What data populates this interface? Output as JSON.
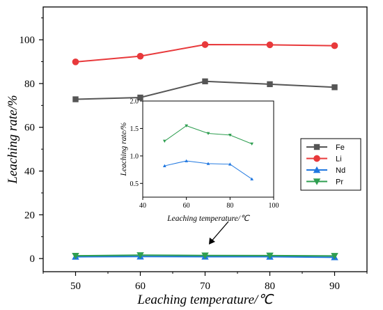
{
  "chart_data": {
    "main": {
      "type": "line",
      "xlabel": "Leaching temperature/℃",
      "ylabel": "Leaching rate/%",
      "xlim": [
        45,
        95
      ],
      "ylim": [
        -6,
        115
      ],
      "xticks": [
        50,
        60,
        70,
        80,
        90
      ],
      "yticks": [
        0,
        20,
        40,
        60,
        80,
        100
      ],
      "x": [
        50,
        60,
        70,
        80,
        90
      ],
      "series": [
        {
          "name": "Fe",
          "color": "#555555",
          "marker": "square",
          "values": [
            72.8,
            73.6,
            81.0,
            79.7,
            78.3
          ]
        },
        {
          "name": "Li",
          "color": "#e8393b",
          "marker": "circle",
          "values": [
            89.9,
            92.5,
            97.8,
            97.7,
            97.3
          ]
        },
        {
          "name": "Nd",
          "color": "#1f77e0",
          "marker": "triangle-up",
          "values": [
            0.82,
            0.91,
            0.86,
            0.85,
            0.58
          ]
        },
        {
          "name": "Pr",
          "color": "#2e9e50",
          "marker": "triangle-down",
          "values": [
            1.27,
            1.55,
            1.41,
            1.38,
            1.22
          ]
        }
      ],
      "legend_position": "right"
    },
    "inset": {
      "type": "line",
      "xlabel": "Leaching temperature/℃",
      "ylabel": "Leaching rate/%",
      "xlim": [
        40,
        100
      ],
      "ylim": [
        0.25,
        2.0
      ],
      "xticks": [
        40,
        60,
        80,
        100
      ],
      "yticks": [
        0.5,
        1.0,
        1.5,
        2.0
      ],
      "ytick_labels": [
        "0.5",
        "1.0",
        "1.5",
        "2.0"
      ],
      "x": [
        50,
        60,
        70,
        80,
        90
      ],
      "series": [
        {
          "name": "Nd",
          "color": "#1f77e0",
          "marker": "triangle-up",
          "values": [
            0.82,
            0.91,
            0.86,
            0.85,
            0.58
          ]
        },
        {
          "name": "Pr",
          "color": "#2e9e50",
          "marker": "triangle-down",
          "values": [
            1.27,
            1.55,
            1.41,
            1.38,
            1.22
          ]
        }
      ]
    }
  }
}
